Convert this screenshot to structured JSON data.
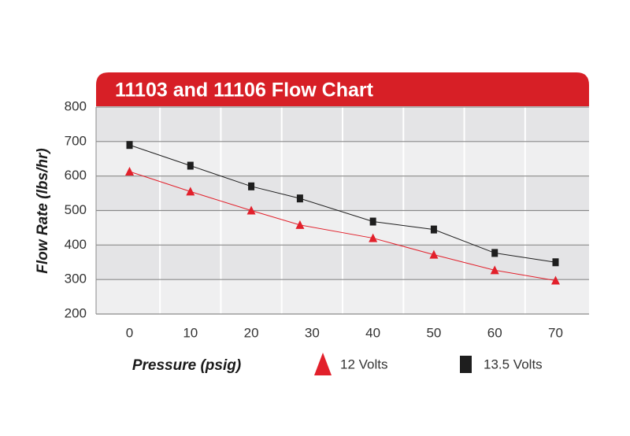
{
  "chart_data": {
    "type": "line",
    "title": "11103 and 11106 Flow Chart",
    "x_label": "Pressure (psig)",
    "y_label": "Flow Rate (lbs/hr)",
    "x": [
      0,
      10,
      20,
      28,
      40,
      50,
      60,
      70
    ],
    "series": [
      {
        "name": "12 Volts",
        "color": "#e2202b",
        "marker": "triangle",
        "values": [
          613,
          555,
          500,
          458,
          420,
          372,
          327,
          297
        ]
      },
      {
        "name": "13.5 Volts",
        "color": "#1e1e1e",
        "marker": "square",
        "values": [
          690,
          630,
          570,
          535,
          468,
          445,
          377,
          350
        ]
      }
    ],
    "xlim": [
      -5.5,
      75.5
    ],
    "xticks": [
      0,
      10,
      20,
      30,
      40,
      50,
      60,
      70
    ],
    "ylim": [
      200,
      800
    ],
    "yticks": [
      200,
      300,
      400,
      500,
      600,
      700,
      800
    ],
    "grid": true
  }
}
